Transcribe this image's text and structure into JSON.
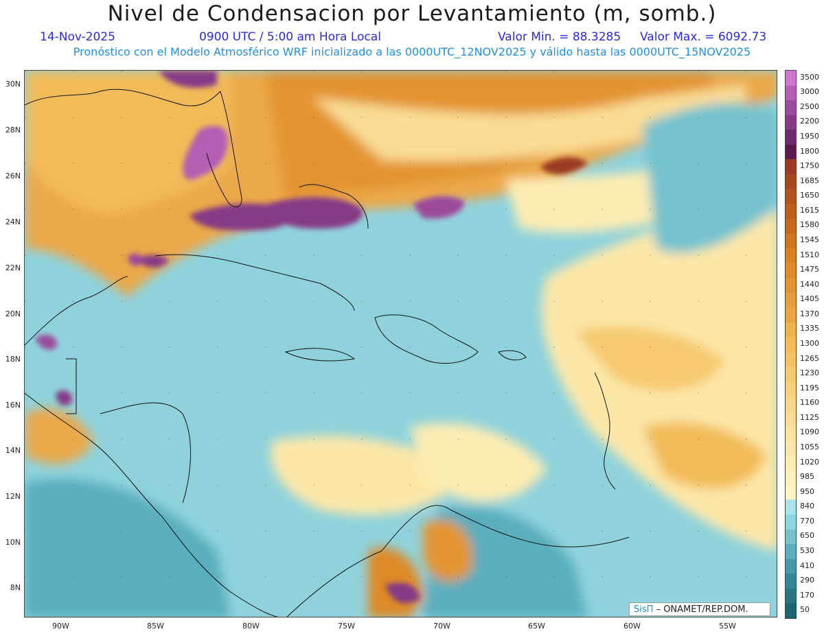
{
  "title": "Nivel de Condensacion por Levantamiento (m, somb.)",
  "date": "14-Nov-2025",
  "time": "0900 UTC / 5:00 am Hora Local",
  "valmin": "Valor Min. = 88.3285",
  "valmax": "Valor Max. = 6092.73",
  "model_line": "Pronóstico con el Modelo Atmosférico WRF inicializado a las 0000UTC_12NOV2025 y válido hasta las  0000UTC_15NOV2025",
  "credit_logo": "SisΠ",
  "credit_text": "– ONAMET/REP.DOM.",
  "lat_labels": [
    "30N",
    "28N",
    "26N",
    "24N",
    "22N",
    "20N",
    "18N",
    "16N",
    "14N",
    "12N",
    "10N",
    "8N"
  ],
  "lon_labels": [
    "90W",
    "85W",
    "80W",
    "75W",
    "70W",
    "65W",
    "60W",
    "55W"
  ],
  "colorbar": {
    "labels": [
      "3500",
      "3000",
      "2500",
      "2200",
      "1950",
      "1800",
      "1750",
      "1685",
      "1650",
      "1615",
      "1580",
      "1545",
      "1510",
      "1475",
      "1440",
      "1405",
      "1370",
      "1335",
      "1300",
      "1265",
      "1230",
      "1195",
      "1160",
      "1125",
      "1090",
      "1055",
      "1020",
      "985",
      "950",
      "840",
      "770",
      "650",
      "530",
      "410",
      "290",
      "170",
      "50"
    ],
    "colors": [
      "#cc77cc",
      "#b45fb4",
      "#9c4a9c",
      "#863a86",
      "#6e2a70",
      "#5a1a4c",
      "#9a3a22",
      "#a84620",
      "#b4521e",
      "#c05e1e",
      "#c8681e",
      "#d0741f",
      "#d88022",
      "#de8a28",
      "#e39430",
      "#e79e38",
      "#eba842",
      "#efb24c",
      "#f2bb58",
      "#f4c264",
      "#f6c970",
      "#f8d07c",
      "#f9d688",
      "#fadc94",
      "#fbe29e",
      "#fce7a8",
      "#fdecb2",
      "#fef0bc",
      "#fef4c6",
      "#a8e4ea",
      "#8ed4de",
      "#74c2ce",
      "#5aaebd",
      "#449aaa",
      "#348796",
      "#287584",
      "#1e6472"
    ]
  }
}
